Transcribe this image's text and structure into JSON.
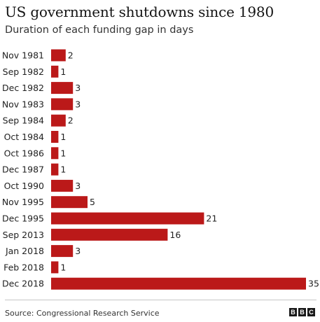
{
  "header": {
    "title": "US government shutdowns since 1980",
    "subtitle": "Duration of each funding gap in days"
  },
  "footer": {
    "source": "Source: Congressional Research Service",
    "logo_letters": [
      "B",
      "B",
      "C"
    ]
  },
  "colors": {
    "bar": "#bb1919",
    "label": "#222222"
  },
  "chart_data": {
    "type": "bar",
    "orientation": "horizontal",
    "title": "US government shutdowns since 1980",
    "subtitle": "Duration of each funding gap in days",
    "categories": [
      "Nov 1981",
      "Sep 1982",
      "Dec 1982",
      "Nov 1983",
      "Sep 1984",
      "Oct 1984",
      "Oct 1986",
      "Dec 1987",
      "Oct 1990",
      "Nov 1995",
      "Dec 1995",
      "Sep 2013",
      "Jan 2018",
      "Feb 2018",
      "Dec 2018"
    ],
    "values": [
      2,
      1,
      3,
      3,
      2,
      1,
      1,
      1,
      3,
      5,
      21,
      16,
      3,
      1,
      35
    ],
    "xlim": [
      0,
      35
    ],
    "data_labels": true,
    "grid": false,
    "source": "Source: Congressional Research Service"
  }
}
